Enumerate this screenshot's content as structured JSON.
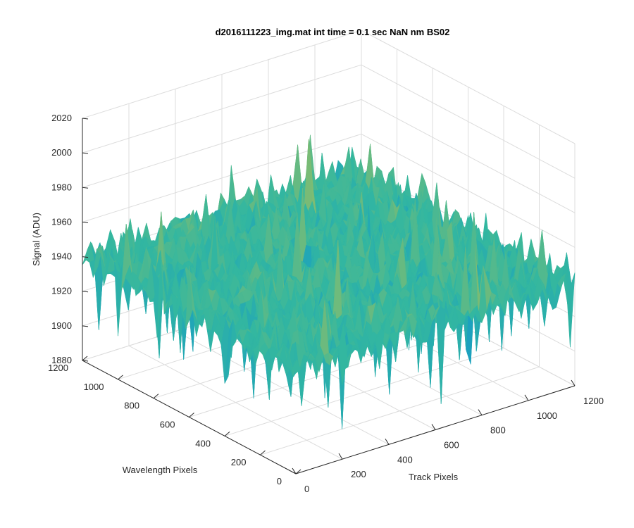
{
  "chart_data": {
    "type": "surface",
    "title": "d2016111223_img.mat int time = 0.1 sec  NaN nm BS02",
    "xlabel": "Track Pixels",
    "ylabel": "Wavelength Pixels",
    "zlabel": "Signal (ADU)",
    "xlim": [
      0,
      1200
    ],
    "ylim": [
      0,
      1200
    ],
    "zlim": [
      1880,
      2020
    ],
    "xticks": [
      0,
      200,
      400,
      600,
      800,
      1000,
      1200
    ],
    "yticks": [
      0,
      200,
      400,
      600,
      800,
      1000,
      1200
    ],
    "zticks": [
      1880,
      1900,
      1920,
      1940,
      1960,
      1980,
      2000,
      2020
    ],
    "grid": true,
    "colormap": "parula",
    "surface_mean": 1940,
    "surface_max": 2000,
    "surface_min": 1880
  },
  "colors": {
    "axis": "#262626",
    "grid": "#dcdcdc",
    "surface_low": "#0e94d0",
    "surface_mid": "#33b7a0",
    "surface_high": "#d7c13d"
  }
}
